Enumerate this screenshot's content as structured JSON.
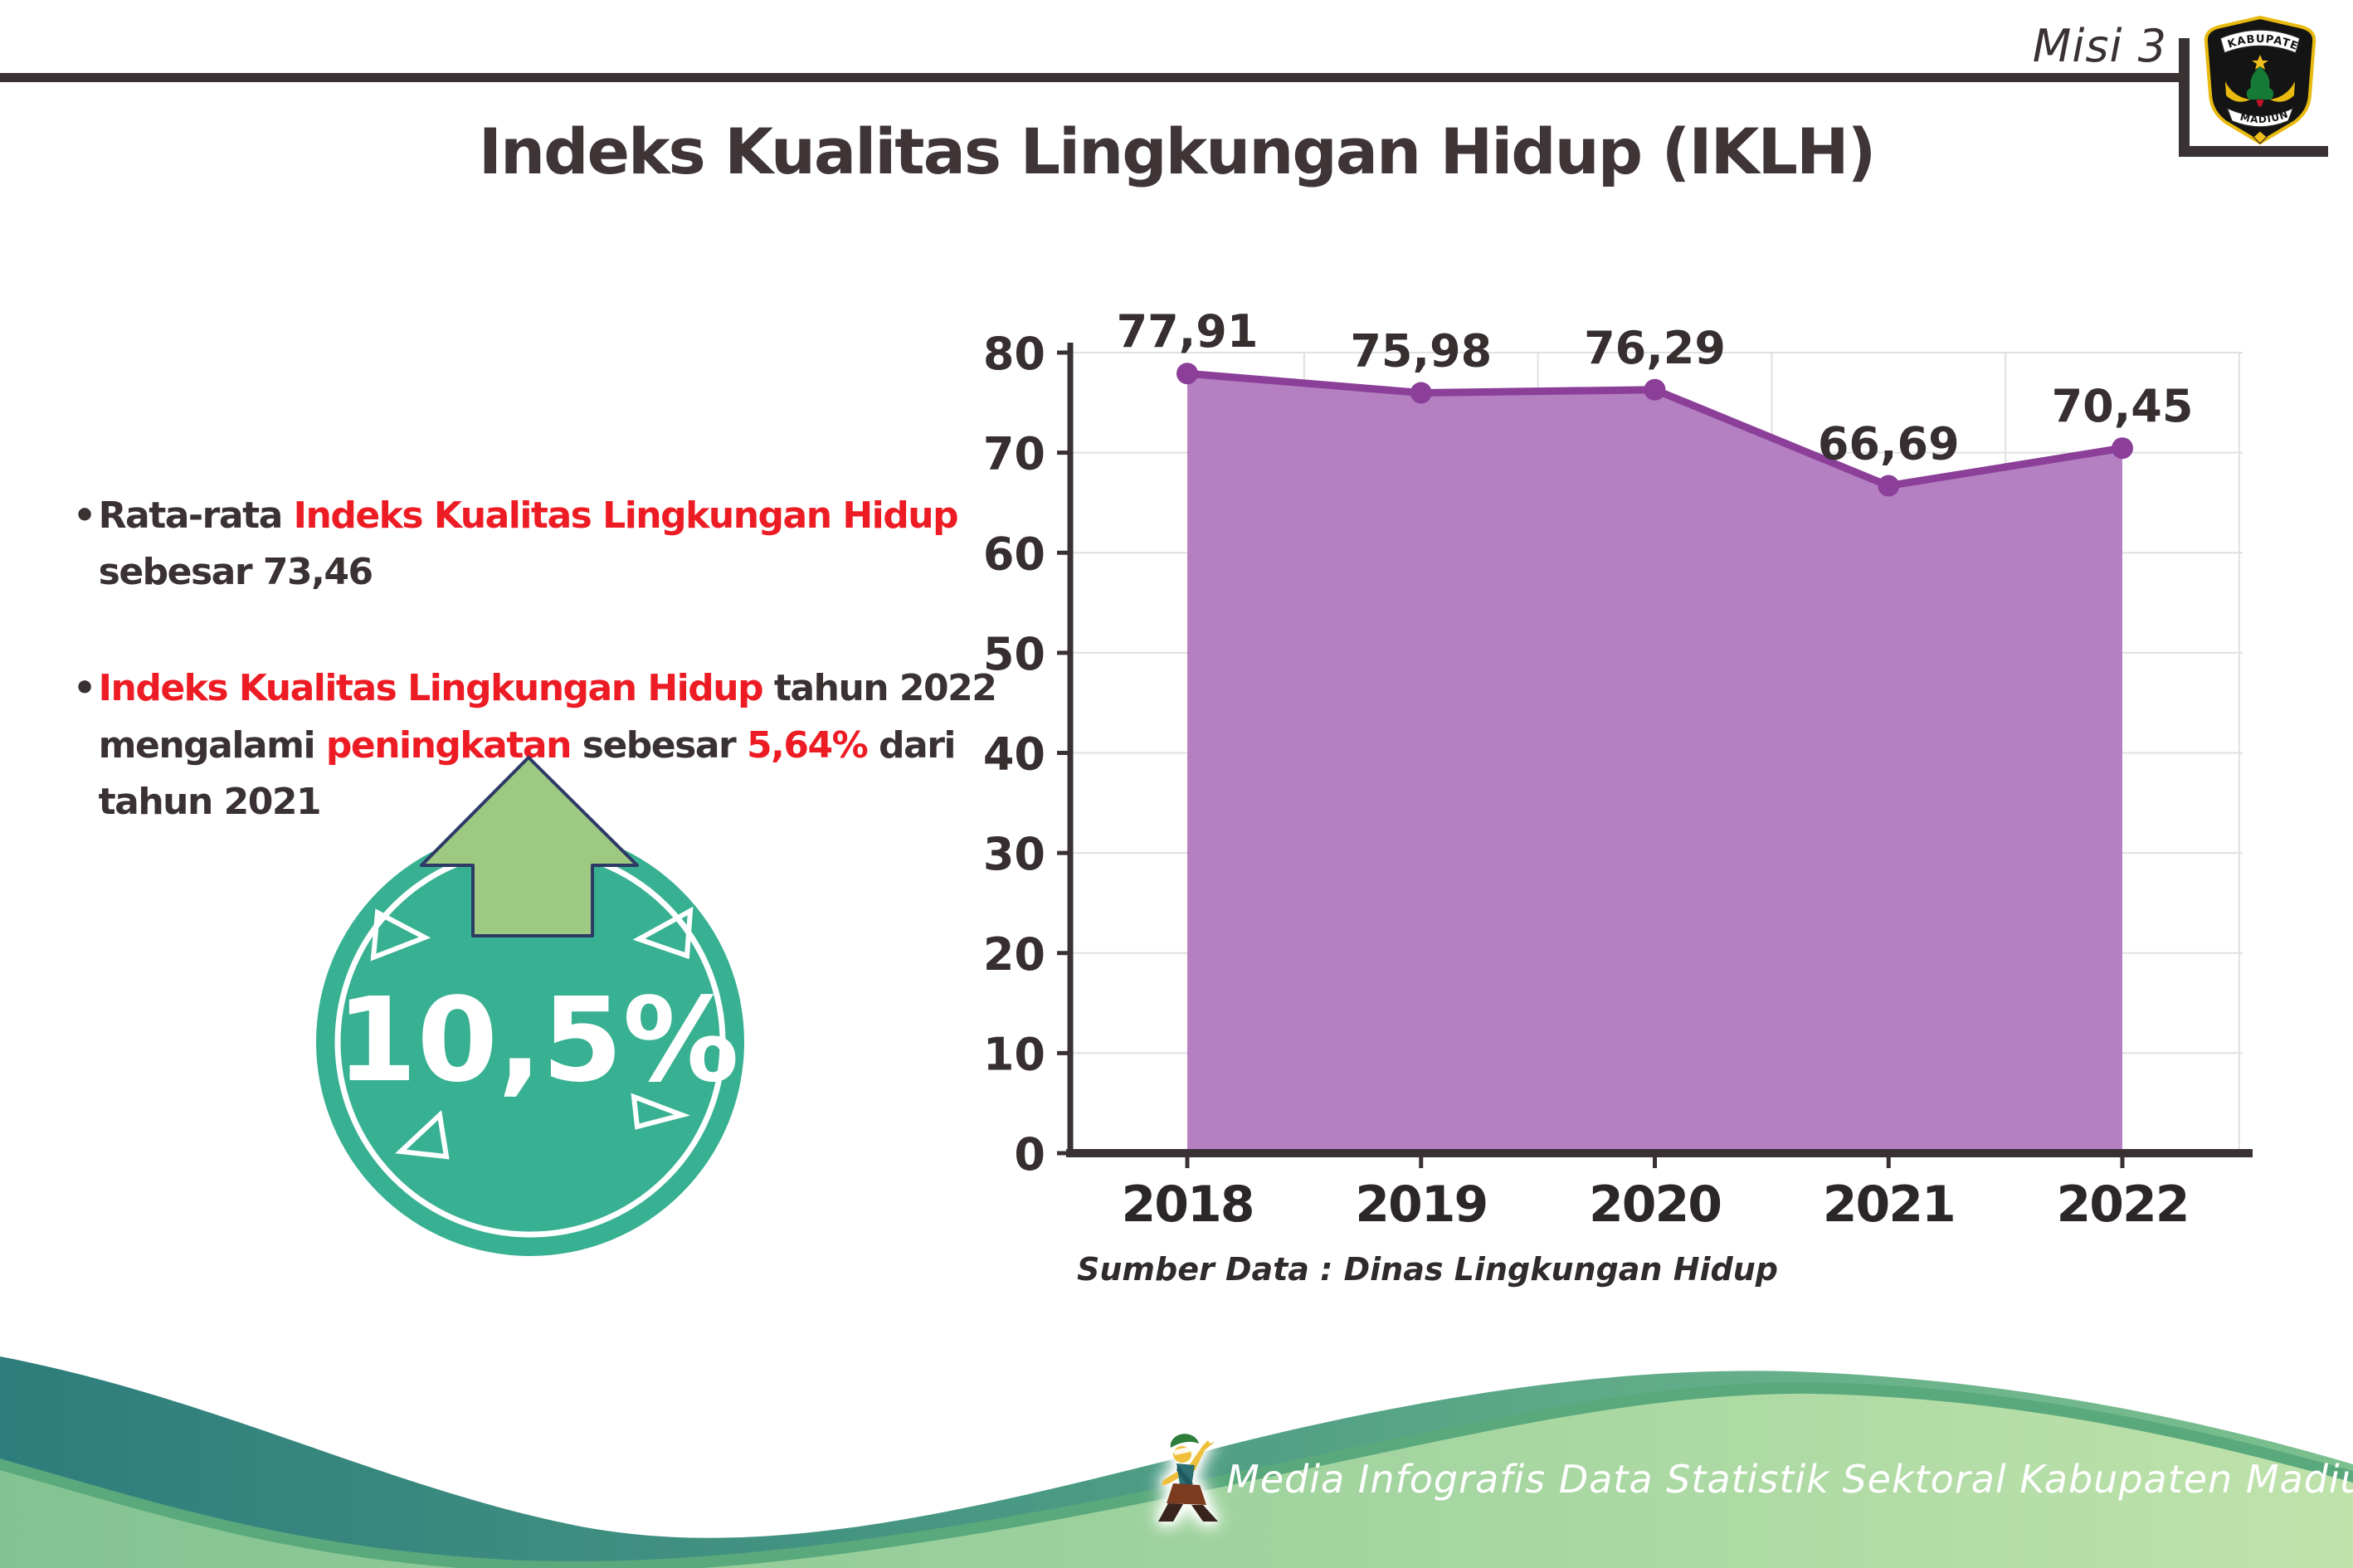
{
  "header": {
    "misi_label": "Misi 3"
  },
  "logo": {
    "top_text": "KABUPATEN",
    "bottom_text": "MADIUN"
  },
  "title": "Indeks Kualitas Lingkungan Hidup (IKLH)",
  "bullets": [
    {
      "lines": [
        [
          {
            "t": "Rata-rata ",
            "c": "dark"
          },
          {
            "t": "Indeks Kualitas Lingkungan Hidup",
            "c": "red"
          }
        ],
        [
          {
            "t": "sebesar 73,46",
            "c": "dark"
          }
        ]
      ]
    },
    {
      "lines": [
        [
          {
            "t": "Indeks Kualitas Lingkungan Hidup",
            "c": "red"
          },
          {
            "t": " tahun 2022",
            "c": "dark"
          }
        ],
        [
          {
            "t": "mengalami ",
            "c": "dark"
          },
          {
            "t": "peningkatan",
            "c": "red"
          },
          {
            "t": " sebesar ",
            "c": "dark"
          },
          {
            "t": "5,64%",
            "c": "red"
          },
          {
            "t": " dari",
            "c": "dark"
          }
        ],
        [
          {
            "t": "tahun 2021",
            "c": "dark"
          }
        ]
      ]
    }
  ],
  "badge": {
    "value": "10,5%",
    "direction": "up"
  },
  "chart_data": {
    "type": "area",
    "x": [
      "2018",
      "2019",
      "2020",
      "2021",
      "2022"
    ],
    "series": [
      {
        "name": "IKLH",
        "values": [
          77.91,
          75.98,
          76.29,
          66.69,
          70.45
        ]
      }
    ],
    "value_labels": [
      "77,91",
      "75,98",
      "76,29",
      "66,69",
      "70,45"
    ],
    "ylim": [
      0,
      80
    ],
    "ytick_step": 10,
    "grid": true,
    "legend": "none",
    "source": "Sumber Data : Dinas Lingkungan Hidup",
    "colors": {
      "line": "#8b3f98",
      "fill": "#b480c2",
      "axis": "#3a3132",
      "grid": "#e0e0e0"
    }
  },
  "footer": {
    "text": "Media Infografis Data Statistik Sektoral Kabupaten Madiun |"
  },
  "colors": {
    "dark": "#3a3132",
    "red": "#ed1c24",
    "badge_teal": "#38b092",
    "arrow_green": "#9ec983",
    "arrow_outline": "#2d3a66",
    "footer_teal_stops": [
      "#2e7d7c",
      "#4a9a84",
      "#7cc08e"
    ],
    "footer_light_stops": [
      "#83c392",
      "#9ed29e",
      "#bfe2ab"
    ],
    "footer_shadow": "#5aa97c"
  }
}
